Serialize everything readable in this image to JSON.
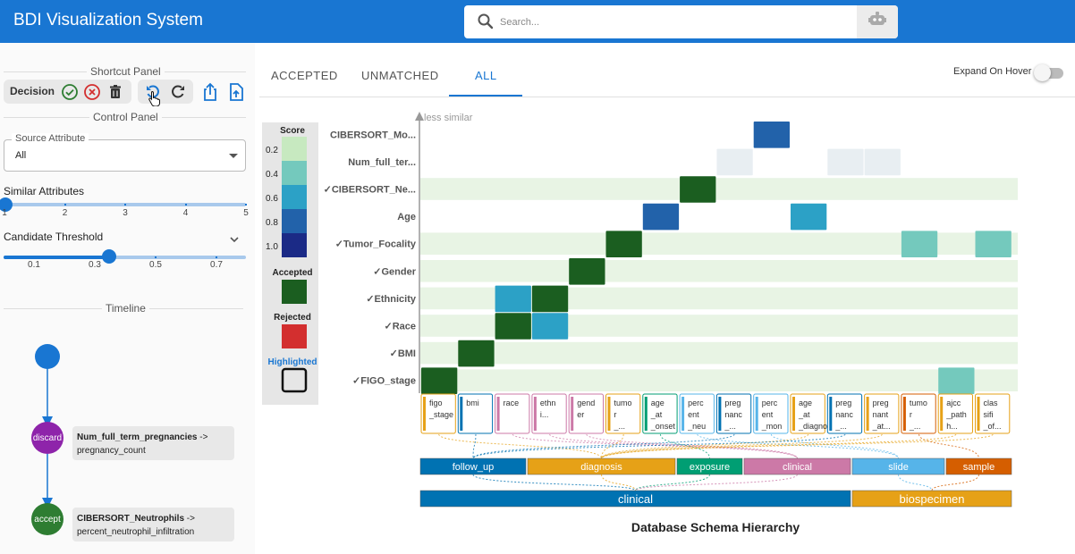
{
  "header": {
    "title": "BDI Visualization System",
    "search_placeholder": "Search..."
  },
  "shortcut_panel": {
    "title": "Shortcut Panel",
    "decision_label": "Decision"
  },
  "control_panel": {
    "title": "Control Panel",
    "source_attribute": {
      "label": "Source Attribute",
      "value": "All"
    },
    "similar_attributes": {
      "label": "Similar Attributes",
      "value": 1,
      "ticks": [
        "1",
        "2",
        "3",
        "4",
        "5"
      ]
    },
    "candidate_threshold": {
      "label": "Candidate Threshold",
      "value": 0.35,
      "ticks": [
        "0.1",
        "0.3",
        "0.5",
        "0.7"
      ]
    }
  },
  "timeline": {
    "title": "Timeline",
    "events": [
      {
        "action": "discard",
        "source": "Num_full_term_pregnancies",
        "target": "pregnancy_count"
      },
      {
        "action": "accept",
        "source": "CIBERSORT_Neutrophils",
        "target": "percent_neutrophil_infiltration"
      }
    ]
  },
  "tabs": [
    {
      "label": "ACCEPTED",
      "active": false
    },
    {
      "label": "UNMATCHED",
      "active": false
    },
    {
      "label": "ALL",
      "active": true
    }
  ],
  "expand_on_hover": {
    "label": "Expand On Hover",
    "on": false
  },
  "legend": {
    "score_title": "Score",
    "score_stops": [
      {
        "label": "0.2",
        "color": "#c7e9c0"
      },
      {
        "label": "0.4",
        "color": "#74c9bd"
      },
      {
        "label": "0.6",
        "color": "#2ca1c6"
      },
      {
        "label": "0.8",
        "color": "#2262aa"
      },
      {
        "label": "1.0",
        "color": "#1b2a86"
      }
    ],
    "accepted": {
      "label": "Accepted",
      "color": "#1b5e20"
    },
    "rejected": {
      "label": "Rejected",
      "color": "#d32f2f"
    },
    "highlighted": {
      "label": "Highlighted"
    }
  },
  "chart_data": {
    "type": "heatmap",
    "y_axis_label": "less similar",
    "rows": [
      {
        "label": "CIBERSORT_Mo...",
        "accepted": false
      },
      {
        "label": "Num_full_ter...",
        "accepted": false
      },
      {
        "label": "CIBERSORT_Ne...",
        "accepted": true
      },
      {
        "label": "Age",
        "accepted": false
      },
      {
        "label": "Tumor_Focality",
        "accepted": true
      },
      {
        "label": "Gender",
        "accepted": true
      },
      {
        "label": "Ethnicity",
        "accepted": true
      },
      {
        "label": "Race",
        "accepted": true
      },
      {
        "label": "BMI",
        "accepted": true
      },
      {
        "label": "FIGO_stage",
        "accepted": true
      }
    ],
    "columns": [
      {
        "label": [
          "figo",
          "_stage"
        ],
        "color": "#e6a117",
        "group": "diagnosis"
      },
      {
        "label": [
          "bmi"
        ],
        "color": "#0072b2",
        "group": "follow_up"
      },
      {
        "label": [
          "race"
        ],
        "color": "#cc79a7",
        "group": "clinical"
      },
      {
        "label": [
          "ethn",
          "i..."
        ],
        "color": "#cc79a7",
        "group": "clinical"
      },
      {
        "label": [
          "gend",
          "er"
        ],
        "color": "#cc79a7",
        "group": "clinical"
      },
      {
        "label": [
          "tumo",
          "r",
          "_..."
        ],
        "color": "#e6a117",
        "group": "diagnosis"
      },
      {
        "label": [
          "age",
          "_at",
          "_onset"
        ],
        "color": "#009e73",
        "group": "exposure"
      },
      {
        "label": [
          "perc",
          "ent",
          "_neu"
        ],
        "color": "#56b4e9",
        "group": "slide"
      },
      {
        "label": [
          "preg",
          "nanc",
          "_..."
        ],
        "color": "#0072b2",
        "group": "follow_up"
      },
      {
        "label": [
          "perc",
          "ent",
          "_mon"
        ],
        "color": "#56b4e9",
        "group": "slide"
      },
      {
        "label": [
          "age",
          "_at",
          "_diagnosis"
        ],
        "color": "#e6a117",
        "group": "diagnosis"
      },
      {
        "label": [
          "preg",
          "nanc",
          "_..."
        ],
        "color": "#0072b2",
        "group": "follow_up"
      },
      {
        "label": [
          "preg",
          "nant",
          "_at..."
        ],
        "color": "#e6a117",
        "group": "diagnosis"
      },
      {
        "label": [
          "tumo",
          "r",
          "_..."
        ],
        "color": "#d55e00",
        "group": "sample"
      },
      {
        "label": [
          "ajcc",
          "_path",
          "h..."
        ],
        "color": "#e6a117",
        "group": "diagnosis"
      },
      {
        "label": [
          "clas",
          "sifi",
          "_of..."
        ],
        "color": "#e6a117",
        "group": "diagnosis"
      }
    ],
    "cells": [
      {
        "row": 0,
        "col": 9,
        "score": 0.85,
        "status": "candidate"
      },
      {
        "row": 1,
        "col": 8,
        "score": 0.08,
        "status": "faded"
      },
      {
        "row": 1,
        "col": 11,
        "score": 0.08,
        "status": "faded"
      },
      {
        "row": 1,
        "col": 12,
        "score": 0.08,
        "status": "faded"
      },
      {
        "row": 2,
        "col": 7,
        "score": 1.0,
        "status": "accepted"
      },
      {
        "row": 3,
        "col": 6,
        "score": 0.8,
        "status": "candidate"
      },
      {
        "row": 3,
        "col": 10,
        "score": 0.6,
        "status": "candidate"
      },
      {
        "row": 4,
        "col": 5,
        "score": 1.0,
        "status": "accepted"
      },
      {
        "row": 4,
        "col": 13,
        "score": 0.4,
        "status": "candidate"
      },
      {
        "row": 4,
        "col": 15,
        "score": 0.4,
        "status": "candidate"
      },
      {
        "row": 5,
        "col": 4,
        "score": 1.0,
        "status": "accepted"
      },
      {
        "row": 6,
        "col": 2,
        "score": 0.6,
        "status": "candidate"
      },
      {
        "row": 6,
        "col": 3,
        "score": 1.0,
        "status": "accepted"
      },
      {
        "row": 7,
        "col": 2,
        "score": 1.0,
        "status": "accepted"
      },
      {
        "row": 7,
        "col": 3,
        "score": 0.6,
        "status": "candidate"
      },
      {
        "row": 8,
        "col": 1,
        "score": 1.0,
        "status": "accepted"
      },
      {
        "row": 9,
        "col": 0,
        "score": 1.0,
        "status": "accepted"
      },
      {
        "row": 9,
        "col": 14,
        "score": 0.4,
        "status": "candidate"
      }
    ],
    "hierarchy_level1": [
      {
        "label": "follow_up",
        "color": "#0072b2"
      },
      {
        "label": "diagnosis",
        "color": "#e6a117"
      },
      {
        "label": "exposure",
        "color": "#009e73"
      },
      {
        "label": "clinical",
        "color": "#cc79a7"
      },
      {
        "label": "slide",
        "color": "#56b4e9"
      },
      {
        "label": "sample",
        "color": "#d55e00"
      }
    ],
    "hierarchy_level0": [
      {
        "label": "clinical",
        "color": "#0072b2"
      },
      {
        "label": "biospecimen",
        "color": "#e6a117"
      }
    ],
    "xlabel": "Database Schema Hierarchy"
  }
}
